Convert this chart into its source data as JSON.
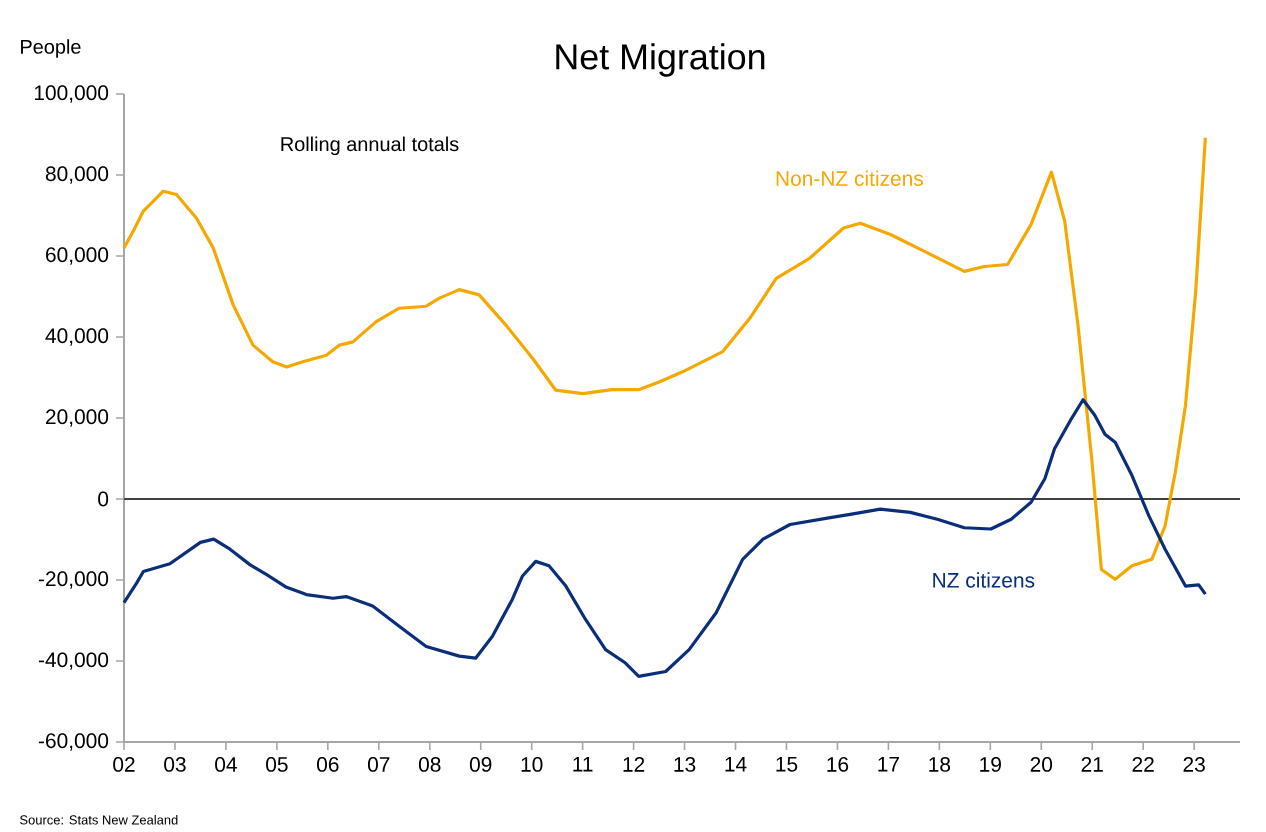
{
  "chart_data": {
    "type": "line",
    "title": "Net Migration",
    "ylabel": "People",
    "annotations": [
      "Rolling annual totals",
      "Source: Stats New Zealand"
    ],
    "legend": false,
    "grid": false,
    "marker": "none",
    "line_style": "solid",
    "xlim": [
      2002,
      2023.9
    ],
    "ylim": [
      -60000,
      100000
    ],
    "xticks": [
      {
        "value": 2002,
        "label": "02"
      },
      {
        "value": 2003,
        "label": "03"
      },
      {
        "value": 2004,
        "label": "04"
      },
      {
        "value": 2005,
        "label": "05"
      },
      {
        "value": 2006,
        "label": "06"
      },
      {
        "value": 2007,
        "label": "07"
      },
      {
        "value": 2008,
        "label": "08"
      },
      {
        "value": 2009,
        "label": "09"
      },
      {
        "value": 2010,
        "label": "10"
      },
      {
        "value": 2011,
        "label": "11"
      },
      {
        "value": 2012,
        "label": "12"
      },
      {
        "value": 2013,
        "label": "13"
      },
      {
        "value": 2014,
        "label": "14"
      },
      {
        "value": 2015,
        "label": "15"
      },
      {
        "value": 2016,
        "label": "16"
      },
      {
        "value": 2017,
        "label": "17"
      },
      {
        "value": 2018,
        "label": "18"
      },
      {
        "value": 2019,
        "label": "19"
      },
      {
        "value": 2020,
        "label": "20"
      },
      {
        "value": 2021,
        "label": "21"
      },
      {
        "value": 2022,
        "label": "22"
      },
      {
        "value": 2023,
        "label": "23"
      }
    ],
    "yticks": [
      {
        "value": -60000,
        "label": "-60,000"
      },
      {
        "value": -40000,
        "label": "-40,000"
      },
      {
        "value": -20000,
        "label": "-20,000"
      },
      0,
      {
        "value": 20000,
        "label": "20,000"
      },
      {
        "value": 40000,
        "label": "40,000"
      },
      {
        "value": 60000,
        "label": "60,000"
      },
      {
        "value": 80000,
        "label": "80,000"
      },
      {
        "value": 100000,
        "label": "100,000"
      }
    ],
    "ref_lines": [
      {
        "axis": "y",
        "value": 0,
        "color": "#404040"
      }
    ],
    "series": [
      {
        "name": "Non-NZ citizens",
        "color": "#f5a800",
        "x": [
          2002.0,
          2002.18,
          2002.38,
          2002.77,
          2003.03,
          2003.42,
          2003.75,
          2004.14,
          2004.53,
          2004.92,
          2005.19,
          2005.51,
          2005.97,
          2006.23,
          2006.49,
          2006.95,
          2007.4,
          2007.93,
          2008.19,
          2008.58,
          2008.97,
          2009.49,
          2010.02,
          2010.47,
          2011.0,
          2011.58,
          2012.1,
          2012.5,
          2012.96,
          2013.75,
          2014.28,
          2014.8,
          2015.46,
          2016.12,
          2016.45,
          2017.04,
          2017.7,
          2018.49,
          2018.88,
          2019.34,
          2019.8,
          2020.2,
          2020.46,
          2020.72,
          2020.99,
          2021.18,
          2021.45,
          2021.78,
          2022.17,
          2022.43,
          2022.63,
          2022.83,
          2023.03,
          2023.22
        ],
        "values": [
          62000,
          66100,
          71100,
          76000,
          75200,
          69400,
          62000,
          48000,
          38000,
          33900,
          32600,
          33900,
          35500,
          38000,
          38800,
          43800,
          47100,
          47600,
          49600,
          51700,
          50400,
          43000,
          34700,
          26900,
          26000,
          27000,
          27000,
          28900,
          31400,
          36400,
          44600,
          54500,
          59500,
          66900,
          68100,
          65300,
          61200,
          56200,
          57400,
          57900,
          67800,
          80700,
          68600,
          43000,
          9900,
          -17400,
          -19800,
          -16500,
          -14900,
          -6600,
          6600,
          23100,
          51200,
          89200
        ]
      },
      {
        "name": "NZ citizens",
        "color": "#0b2e7a",
        "x": [
          2002.0,
          2002.25,
          2002.38,
          2002.9,
          2003.5,
          2003.76,
          2004.08,
          2004.47,
          2004.8,
          2005.19,
          2005.58,
          2006.1,
          2006.36,
          2006.88,
          2007.4,
          2007.93,
          2008.58,
          2008.9,
          2009.23,
          2009.62,
          2009.82,
          2010.08,
          2010.34,
          2010.67,
          2011.06,
          2011.45,
          2011.84,
          2012.1,
          2012.63,
          2013.09,
          2013.62,
          2014.14,
          2014.54,
          2015.07,
          2015.86,
          2016.25,
          2016.84,
          2017.43,
          2017.96,
          2018.49,
          2019.01,
          2019.41,
          2019.8,
          2020.07,
          2020.26,
          2020.59,
          2020.82,
          2021.05,
          2021.25,
          2021.45,
          2021.78,
          2022.11,
          2022.43,
          2022.83,
          2023.09,
          2023.22
        ],
        "values": [
          -25600,
          -20700,
          -17900,
          -16000,
          -10700,
          -9900,
          -12400,
          -16200,
          -18700,
          -21800,
          -23600,
          -24500,
          -24100,
          -26400,
          -31400,
          -36400,
          -38800,
          -39300,
          -33900,
          -24800,
          -19000,
          -15400,
          -16500,
          -21500,
          -29800,
          -37200,
          -40500,
          -43800,
          -42600,
          -37200,
          -28100,
          -14900,
          -9900,
          -6300,
          -4600,
          -3800,
          -2500,
          -3300,
          -5000,
          -7100,
          -7400,
          -5000,
          -800,
          5000,
          12400,
          19800,
          24500,
          20700,
          16000,
          14000,
          5800,
          -4100,
          -12400,
          -21500,
          -21200,
          -23500
        ]
      }
    ]
  }
}
